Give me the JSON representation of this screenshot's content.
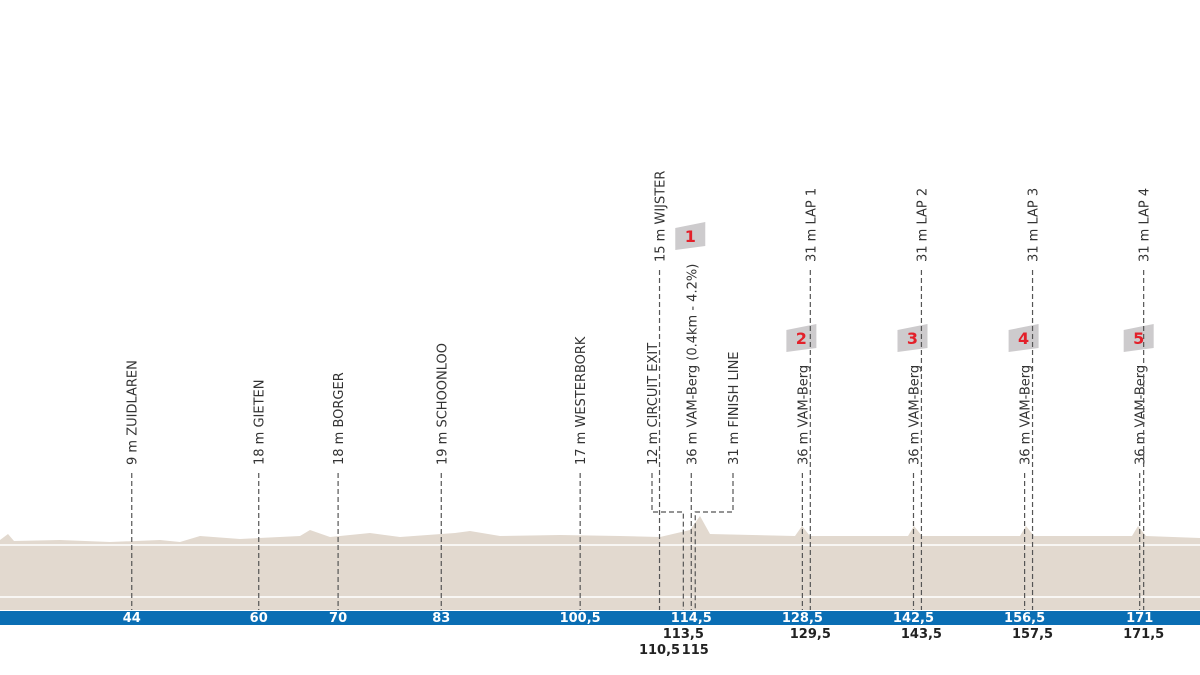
{
  "chart_data": {
    "type": "profile",
    "xlim": [
      27.4,
      178.6
    ],
    "markers": [
      {
        "label": "9 m ZUIDLAREN",
        "km": 44
      },
      {
        "label": "18 m GIETEN",
        "km": 60
      },
      {
        "label": "18 m BORGER",
        "km": 70
      },
      {
        "label": "19 m SCHOONLOO",
        "km": 83
      },
      {
        "label": "17 m WESTERBORK",
        "km": {
          "value": 100.5,
          "label": "100,5"
        }
      },
      {
        "label": "15 m WIJSTER",
        "km": {
          "value": 110.5,
          "label": "110,5"
        }
      },
      {
        "label": "12 m CIRCUIT EXIT",
        "km": {
          "value": 113.5,
          "label": "113,5"
        }
      },
      {
        "label": "36 m VAM-Berg (0.4km - 4.2%)",
        "km": {
          "value": 114.5,
          "label": "114,5"
        },
        "climb": "1"
      },
      {
        "label": "31 m FINISH LINE",
        "km": 115
      },
      {
        "label": "36 m VAM-Berg",
        "km": {
          "value": 128.5,
          "label": "128,5"
        },
        "climb": "2"
      },
      {
        "label": "31 m LAP 1",
        "km": {
          "value": 129.5,
          "label": "129,5"
        }
      },
      {
        "label": "36 m VAM-Berg",
        "km": {
          "value": 142.5,
          "label": "142,5"
        },
        "climb": "3"
      },
      {
        "label": "31 m LAP 2",
        "km": {
          "value": 143.5,
          "label": "143,5"
        }
      },
      {
        "label": "36 m VAM-Berg",
        "km": {
          "value": 156.5,
          "label": "156,5"
        },
        "climb": "4"
      },
      {
        "label": "31 m LAP 3",
        "km": {
          "value": 157.5,
          "label": "157,5"
        }
      },
      {
        "label": "36 m VAM-Berg",
        "km": 171,
        "climb": "5"
      },
      {
        "label": "31 m LAP 4",
        "km": {
          "value": 171.5,
          "label": "171,5"
        }
      }
    ]
  }
}
